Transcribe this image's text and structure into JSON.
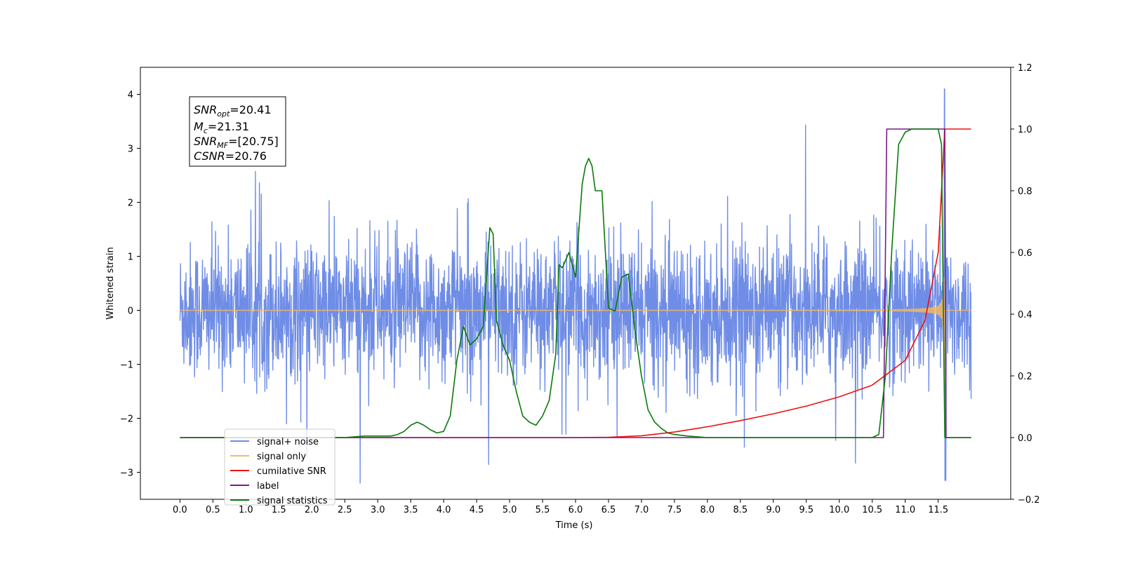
{
  "chart_data": {
    "type": "line",
    "xlabel": "Time (s)",
    "ylabel": "Whitened strain",
    "x_ticks": [
      "0.0",
      "0.5",
      "1.0",
      "1.5",
      "2.0",
      "2.5",
      "3.0",
      "3.5",
      "4.0",
      "4.5",
      "5.0",
      "5.5",
      "6.0",
      "6.5",
      "7.0",
      "7.5",
      "8.0",
      "8.5",
      "9.0",
      "9.5",
      "10.0",
      "10.5",
      "11.0",
      "11.5"
    ],
    "xlim": [
      -0.6,
      12.6
    ],
    "ylim_left": [
      -3.5,
      4.5
    ],
    "ylim_right": [
      -0.2,
      1.2
    ],
    "y_ticks_left": [
      "−3",
      "−2",
      "−1",
      "0",
      "1",
      "2",
      "3",
      "4"
    ],
    "y_ticks_right": [
      "−0.2",
      "0.0",
      "0.2",
      "0.4",
      "0.6",
      "0.8",
      "1.0",
      "1.2"
    ],
    "grid": false,
    "legend_position": "lower-left",
    "annotation": {
      "lines": [
        {
          "base": "SNR",
          "sub": "opt",
          "value": "=20.41"
        },
        {
          "base": "M",
          "sub": "c",
          "value": "=21.31"
        },
        {
          "base": "SNR",
          "sub": "MF",
          "value": "=[20.75]"
        },
        {
          "base": "CSNR",
          "sub": "",
          "value": "=20.76"
        }
      ]
    },
    "series": [
      {
        "name": "signal+ noise",
        "color": "#6f8de6",
        "axis": "left",
        "kind": "noise",
        "amplitude": 1.5,
        "t_range": [
          0.0,
          12.0
        ]
      },
      {
        "name": "signal only",
        "color": "#f5b860",
        "axis": "left",
        "kind": "chirp",
        "t_range": [
          0.0,
          12.0
        ],
        "merger_time": 11.6
      },
      {
        "name": "cumilative SNR",
        "color": "#ee1111",
        "axis": "right",
        "x": [
          0.0,
          6.0,
          6.5,
          7.0,
          7.5,
          8.0,
          8.5,
          9.0,
          9.5,
          10.0,
          10.5,
          11.0,
          11.3,
          11.5,
          11.6,
          11.7,
          12.0
        ],
        "y": [
          0.0,
          0.0,
          0.001,
          0.006,
          0.018,
          0.035,
          0.055,
          0.077,
          0.102,
          0.132,
          0.17,
          0.25,
          0.38,
          0.6,
          1.0,
          1.0,
          1.0
        ]
      },
      {
        "name": "label",
        "color": "#7a1a8a",
        "axis": "right",
        "x": [
          0.0,
          10.67,
          10.72,
          11.6,
          11.62,
          11.7,
          12.0
        ],
        "y": [
          0.0,
          0.0,
          1.0,
          1.0,
          0.0,
          0.0,
          0.0
        ]
      },
      {
        "name": "signal statistics",
        "color": "#0a7a0a",
        "axis": "right",
        "x": [
          0.0,
          2.5,
          2.8,
          3.0,
          3.2,
          3.3,
          3.4,
          3.5,
          3.6,
          3.7,
          3.8,
          3.9,
          4.0,
          4.1,
          4.2,
          4.3,
          4.4,
          4.5,
          4.6,
          4.7,
          4.75,
          4.8,
          4.9,
          5.0,
          5.1,
          5.2,
          5.3,
          5.4,
          5.5,
          5.6,
          5.7,
          5.75,
          5.8,
          5.9,
          6.0,
          6.1,
          6.15,
          6.2,
          6.25,
          6.3,
          6.4,
          6.5,
          6.6,
          6.7,
          6.8,
          6.9,
          7.0,
          7.1,
          7.2,
          7.3,
          7.4,
          7.5,
          7.7,
          8.0,
          10.5,
          10.6,
          10.7,
          10.8,
          10.9,
          11.0,
          11.1,
          11.3,
          11.5,
          11.55,
          11.6,
          11.7,
          12.0
        ],
        "y": [
          0.0,
          0.0,
          0.005,
          0.005,
          0.005,
          0.01,
          0.02,
          0.04,
          0.05,
          0.04,
          0.025,
          0.015,
          0.02,
          0.07,
          0.25,
          0.36,
          0.3,
          0.32,
          0.36,
          0.68,
          0.66,
          0.38,
          0.3,
          0.25,
          0.15,
          0.07,
          0.05,
          0.04,
          0.07,
          0.12,
          0.27,
          0.56,
          0.55,
          0.6,
          0.52,
          0.82,
          0.88,
          0.905,
          0.88,
          0.8,
          0.8,
          0.42,
          0.41,
          0.52,
          0.53,
          0.35,
          0.2,
          0.09,
          0.05,
          0.03,
          0.015,
          0.01,
          0.005,
          0.0,
          0.0,
          0.01,
          0.2,
          0.62,
          0.95,
          0.99,
          1.0,
          1.0,
          1.0,
          0.95,
          0.0,
          0.0,
          0.0
        ]
      }
    ],
    "legend_entries": [
      "signal+ noise",
      "signal only",
      "cumilative SNR",
      "label",
      "signal statistics"
    ],
    "legend_colors": [
      "#6f8de6",
      "#f5b860",
      "#ee1111",
      "#7a1a8a",
      "#0a7a0a"
    ]
  }
}
